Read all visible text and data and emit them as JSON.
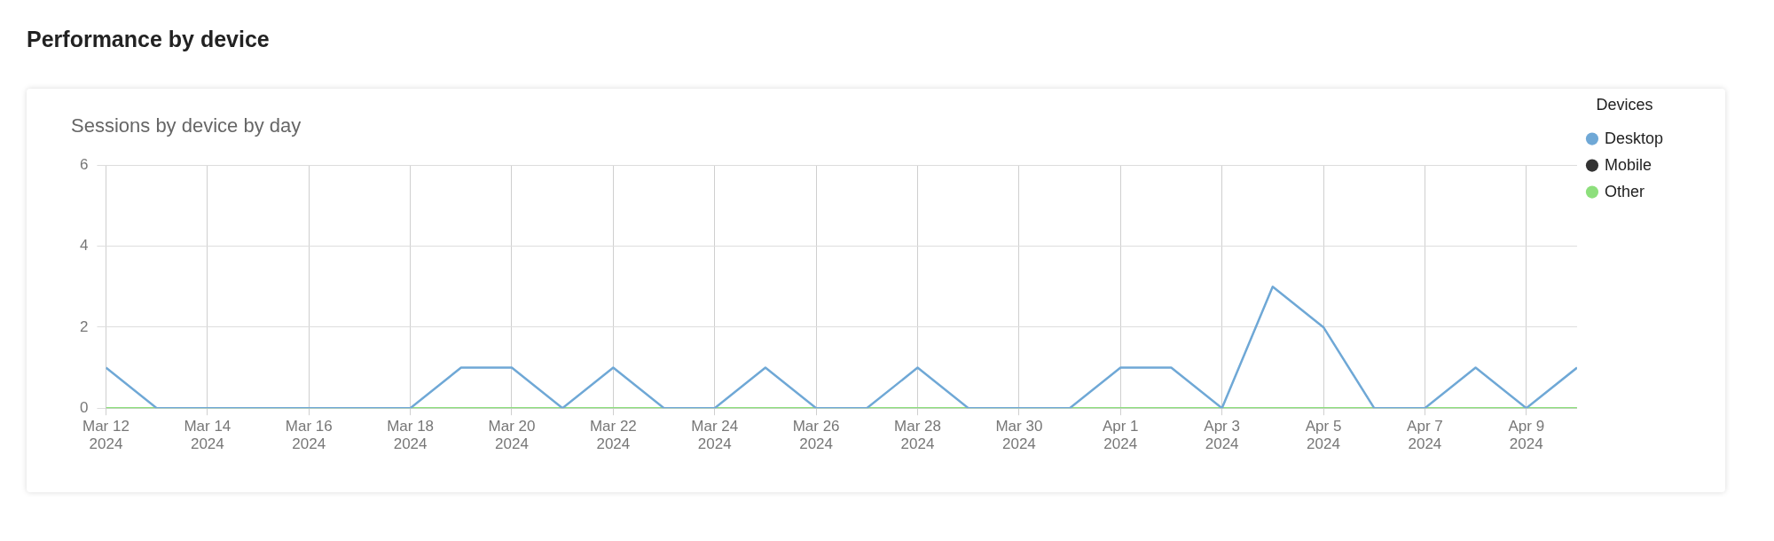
{
  "chart_data": {
    "type": "line",
    "title": "Performance by device",
    "subtitle": "Sessions by device by day",
    "legend_title": "Devices",
    "x": [
      "2024-03-12",
      "2024-03-13",
      "2024-03-14",
      "2024-03-15",
      "2024-03-16",
      "2024-03-17",
      "2024-03-18",
      "2024-03-19",
      "2024-03-20",
      "2024-03-21",
      "2024-03-22",
      "2024-03-23",
      "2024-03-24",
      "2024-03-25",
      "2024-03-26",
      "2024-03-27",
      "2024-03-28",
      "2024-03-29",
      "2024-03-30",
      "2024-03-31",
      "2024-04-01",
      "2024-04-02",
      "2024-04-03",
      "2024-04-04",
      "2024-04-05",
      "2024-04-06",
      "2024-04-07",
      "2024-04-08",
      "2024-04-09",
      "2024-04-10"
    ],
    "series": [
      {
        "name": "Desktop",
        "color": "#6fa8d6",
        "values": [
          1,
          0,
          0,
          0,
          0,
          0,
          0,
          1,
          1,
          0,
          1,
          0,
          0,
          1,
          0,
          0,
          1,
          0,
          0,
          0,
          1,
          1,
          0,
          3,
          2,
          0,
          0,
          1,
          0,
          1
        ]
      },
      {
        "name": "Mobile",
        "color": "#333333",
        "values": [
          null,
          null,
          null,
          null,
          null,
          null,
          null,
          null,
          null,
          null,
          null,
          null,
          null,
          null,
          null,
          null,
          null,
          null,
          null,
          null,
          null,
          null,
          null,
          null,
          null,
          null,
          null,
          null,
          null,
          null
        ]
      },
      {
        "name": "Other",
        "color": "#8ddf7c",
        "values": [
          0,
          0,
          0,
          0,
          0,
          0,
          0,
          0,
          0,
          0,
          0,
          0,
          0,
          0,
          0,
          0,
          0,
          0,
          0,
          0,
          0,
          0,
          0,
          0,
          0,
          0,
          0,
          0,
          0,
          0
        ]
      }
    ],
    "xlim": [
      "2024-03-12",
      "2024-04-10"
    ],
    "xticks": [
      {
        "value": "2024-03-12",
        "label": "Mar 12 2024"
      },
      {
        "value": "2024-03-14",
        "label": "Mar 14 2024"
      },
      {
        "value": "2024-03-16",
        "label": "Mar 16 2024"
      },
      {
        "value": "2024-03-18",
        "label": "Mar 18 2024"
      },
      {
        "value": "2024-03-20",
        "label": "Mar 20 2024"
      },
      {
        "value": "2024-03-22",
        "label": "Mar 22 2024"
      },
      {
        "value": "2024-03-24",
        "label": "Mar 24 2024"
      },
      {
        "value": "2024-03-26",
        "label": "Mar 26 2024"
      },
      {
        "value": "2024-03-28",
        "label": "Mar 28 2024"
      },
      {
        "value": "2024-03-30",
        "label": "Mar 30 2024"
      },
      {
        "value": "2024-04-01",
        "label": "Apr 1 2024"
      },
      {
        "value": "2024-04-03",
        "label": "Apr 3 2024"
      },
      {
        "value": "2024-04-05",
        "label": "Apr 5 2024"
      },
      {
        "value": "2024-04-07",
        "label": "Apr 7 2024"
      },
      {
        "value": "2024-04-09",
        "label": "Apr 9 2024"
      }
    ],
    "ylim": [
      0,
      6
    ],
    "yticks": [
      0,
      2,
      4,
      6
    ],
    "grid": true,
    "legend": "top right",
    "marker": "none",
    "line_style": "solid"
  }
}
